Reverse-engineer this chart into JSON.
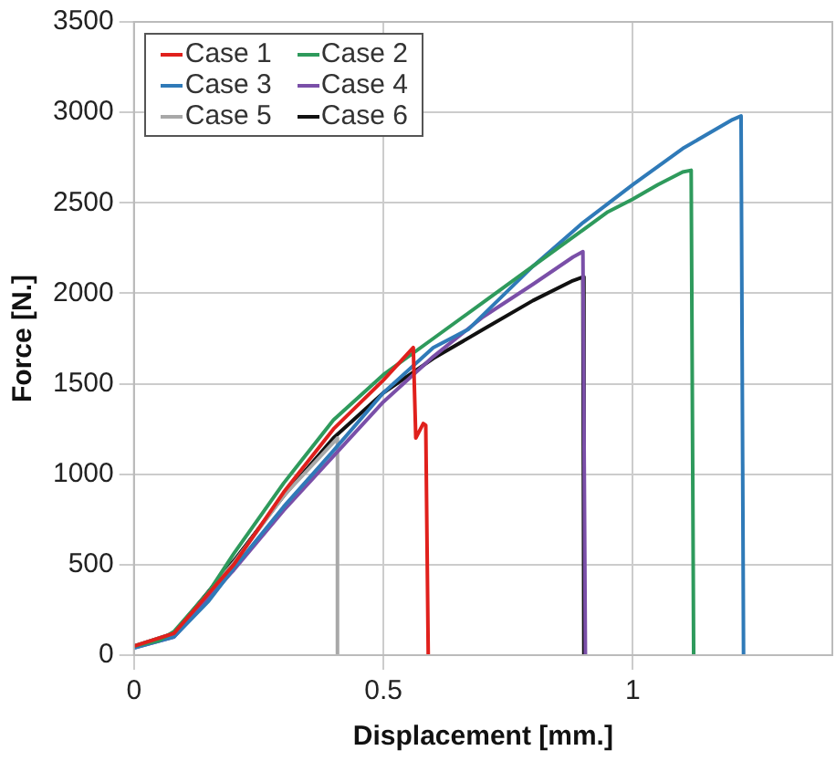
{
  "chart_data": {
    "type": "line",
    "xlabel": "Displacement [mm.]",
    "ylabel": "Force [N.]",
    "xlim": [
      0,
      1.4
    ],
    "xticks": [
      0,
      0.5,
      1
    ],
    "ylim": [
      0,
      3500
    ],
    "yticks": [
      0,
      500,
      1000,
      1500,
      2000,
      2500,
      3000,
      3500
    ],
    "grid": true,
    "legend": "top left",
    "marker": "none",
    "line_style": "solid",
    "series": [
      {
        "name": "Case 1",
        "color": "#e0201c",
        "x": [
          0,
          0.08,
          0.2,
          0.3,
          0.4,
          0.5,
          0.56,
          0.565,
          0.58,
          0.585,
          0.59
        ],
        "values": [
          50,
          120,
          500,
          900,
          1250,
          1520,
          1700,
          1200,
          1280,
          1270,
          0
        ]
      },
      {
        "name": "Case 2",
        "color": "#2e9a5c",
        "x": [
          0,
          0.05,
          0.08,
          0.15,
          0.2,
          0.3,
          0.4,
          0.5,
          0.6,
          0.7,
          0.8,
          0.9,
          0.95,
          1.0,
          1.05,
          1.1,
          1.117,
          1.122
        ],
        "values": [
          50,
          80,
          130,
          350,
          560,
          950,
          1300,
          1550,
          1750,
          1950,
          2150,
          2350,
          2450,
          2520,
          2600,
          2670,
          2680,
          0
        ]
      },
      {
        "name": "Case 3",
        "color": "#2f7ab8",
        "x": [
          0,
          0.08,
          0.15,
          0.2,
          0.3,
          0.4,
          0.5,
          0.6,
          0.67,
          0.8,
          0.9,
          1.0,
          1.1,
          1.2,
          1.217,
          1.222
        ],
        "values": [
          40,
          100,
          300,
          480,
          820,
          1130,
          1450,
          1700,
          1800,
          2150,
          2390,
          2600,
          2800,
          2960,
          2980,
          0
        ]
      },
      {
        "name": "Case 4",
        "color": "#7a4fa8",
        "x": [
          0,
          0.08,
          0.2,
          0.3,
          0.4,
          0.5,
          0.6,
          0.7,
          0.8,
          0.88,
          0.9,
          0.905
        ],
        "values": [
          40,
          100,
          470,
          800,
          1100,
          1400,
          1650,
          1870,
          2050,
          2200,
          2230,
          0
        ]
      },
      {
        "name": "Case 5",
        "color": "#a8a8a8",
        "x": [
          0,
          0.08,
          0.2,
          0.3,
          0.408,
          0.408
        ],
        "values": [
          50,
          120,
          510,
          880,
          1200,
          0
        ]
      },
      {
        "name": "Case 6",
        "color": "#111111",
        "x": [
          0,
          0.08,
          0.2,
          0.3,
          0.4,
          0.5,
          0.6,
          0.7,
          0.8,
          0.88,
          0.9,
          0.902
        ],
        "values": [
          50,
          120,
          520,
          880,
          1200,
          1450,
          1640,
          1800,
          1960,
          2070,
          2090,
          0
        ]
      }
    ]
  }
}
